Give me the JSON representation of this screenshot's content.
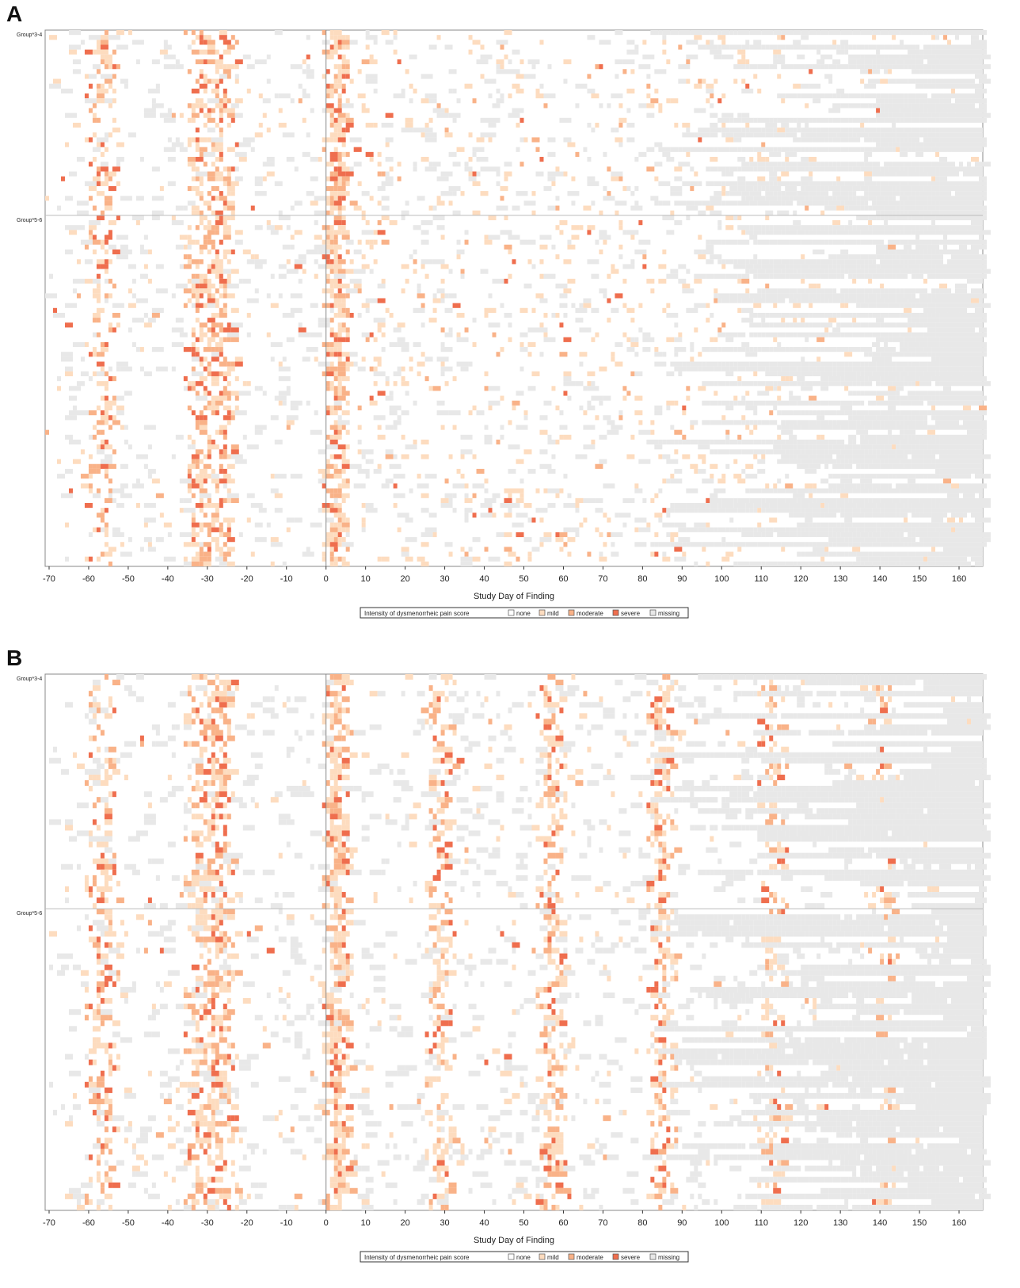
{
  "panels": [
    {
      "letter": "A"
    },
    {
      "letter": "B"
    }
  ],
  "colors": {
    "none": "#ffffff",
    "mild": "#fddcbf",
    "moderate": "#f9b288",
    "severe": "#ef6e4e",
    "missing": "#e8e8e8"
  },
  "chart_data": [
    {
      "type": "heatmap",
      "panel": "A",
      "title": "",
      "xlabel": "Study Day of Finding",
      "ylabel": "",
      "xlim": [
        -71,
        166
      ],
      "x_ticks": [
        -70,
        -60,
        -50,
        -40,
        -30,
        -20,
        -10,
        0,
        10,
        20,
        30,
        40,
        50,
        60,
        70,
        80,
        90,
        100,
        110,
        120,
        130,
        140,
        150,
        160
      ],
      "groups": [
        {
          "label": "Group*3-4",
          "n_subjects": 38
        },
        {
          "label": "Group*5-6",
          "n_subjects": 72
        }
      ],
      "reference_line_x": 0,
      "legend": {
        "title": "Intensity of dysmenorrheic pain score",
        "entries": [
          "none",
          "mild",
          "moderate",
          "severe",
          " missing"
        ],
        "placement": "bottom-center"
      },
      "pattern": "pain concentrated around study days -60 to -55, -35 to -25 and 0 to 5; scattered mild/moderate scores after day 5"
    },
    {
      "type": "heatmap",
      "panel": "B",
      "title": "",
      "xlabel": "Study Day of Finding",
      "ylabel": "",
      "xlim": [
        -71,
        166
      ],
      "x_ticks": [
        -70,
        -60,
        -50,
        -40,
        -30,
        -20,
        -10,
        0,
        10,
        20,
        30,
        40,
        50,
        60,
        70,
        80,
        90,
        100,
        110,
        120,
        130,
        140,
        150,
        160
      ],
      "groups": [
        {
          "label": "Group*3-4",
          "n_subjects": 42
        },
        {
          "label": "Group*5-6",
          "n_subjects": 54
        }
      ],
      "reference_line_x": 0,
      "legend": {
        "title": "Intensity of dysmenorrheic pain score",
        "entries": [
          "none",
          "mild",
          "moderate",
          "severe",
          "missing"
        ],
        "placement": "bottom-center"
      },
      "pattern": "pain concentrated around study days -60 to -55, -35 to -25, 0 to 5, then recurring bands near days 28, 56, 84, 112 and 140"
    }
  ]
}
